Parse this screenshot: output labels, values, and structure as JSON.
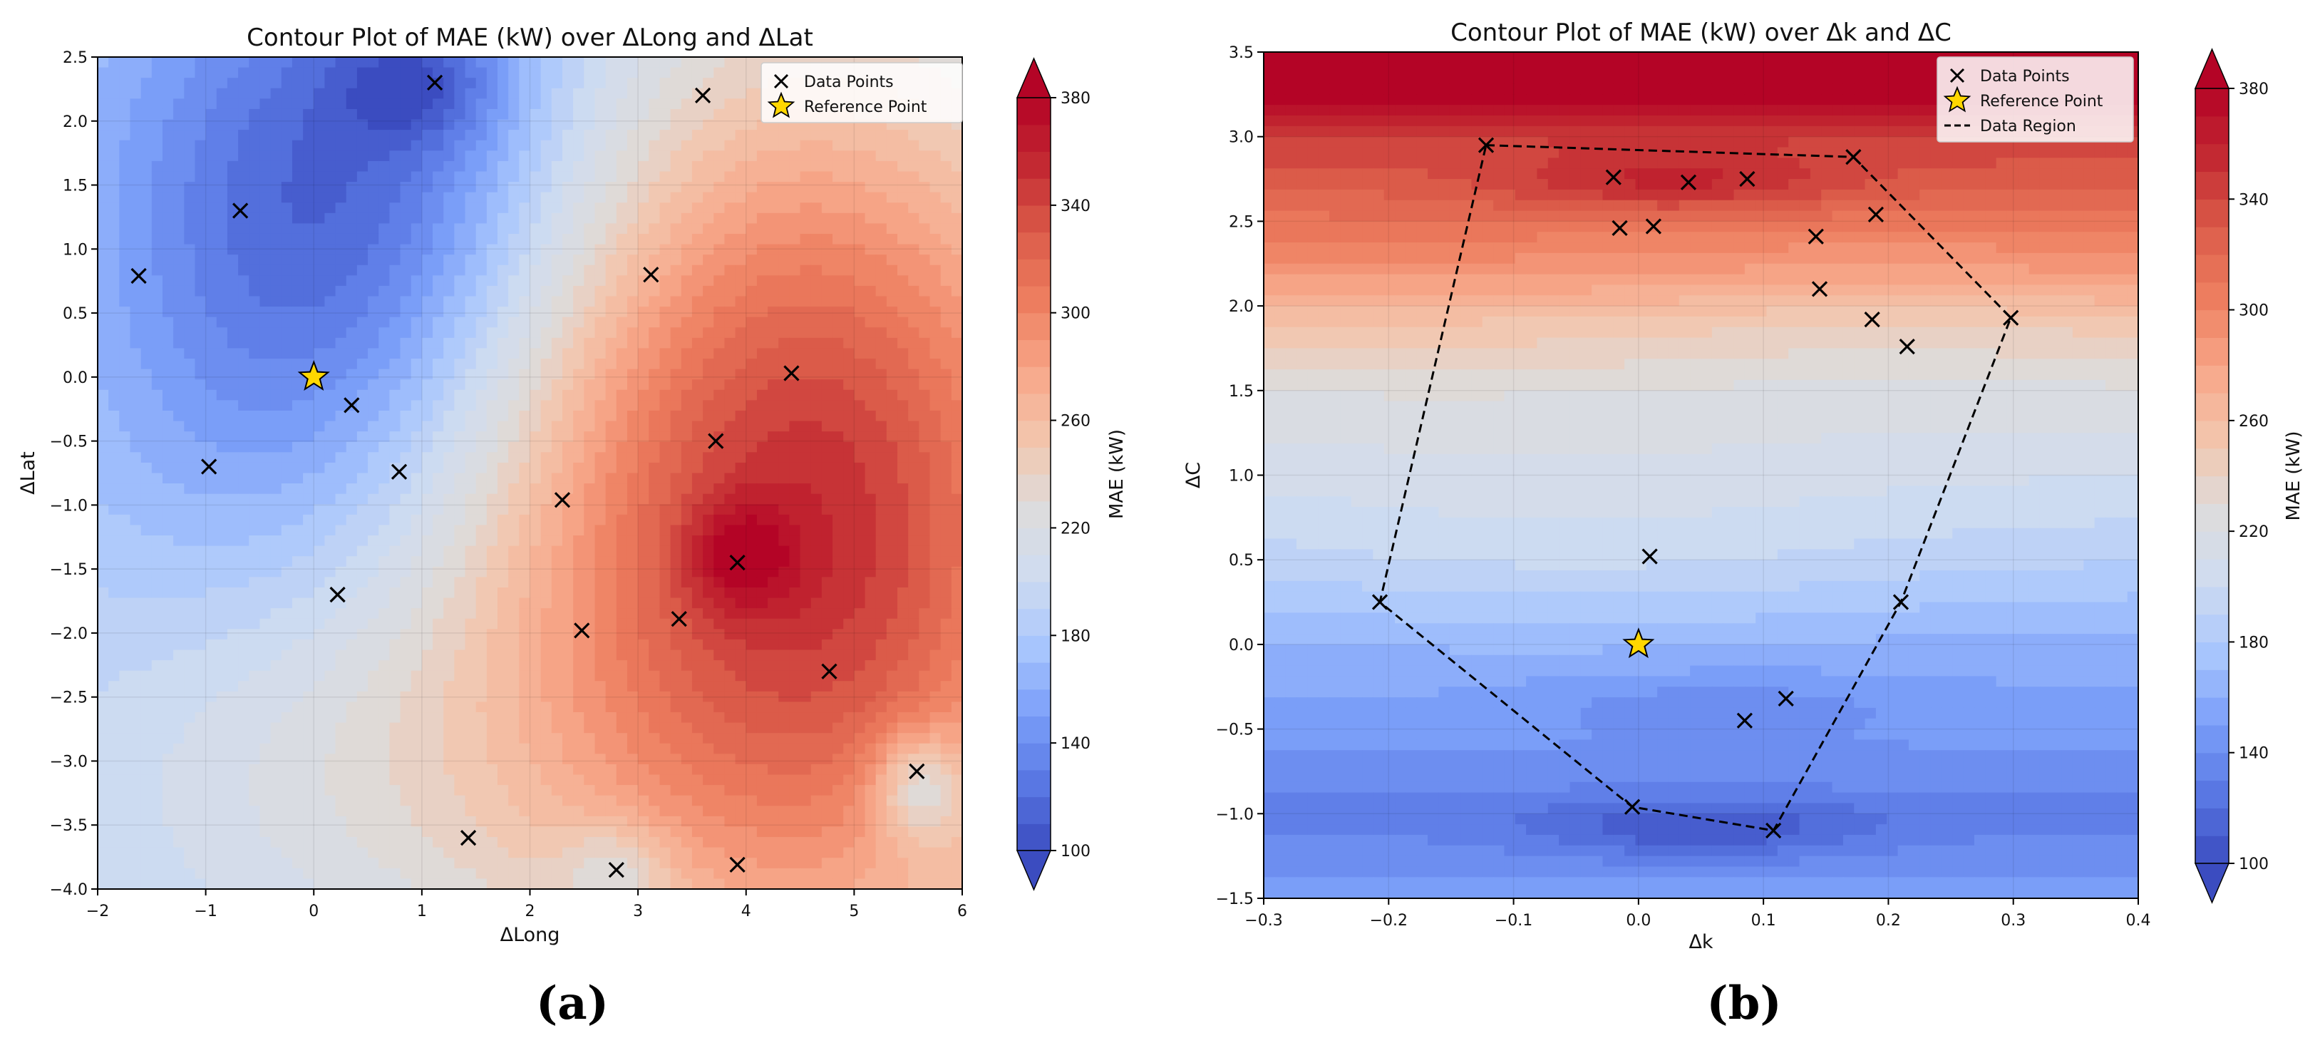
{
  "figure": {
    "captions": [
      "(a)",
      "(b)"
    ]
  },
  "colors": {
    "cmap": [
      "#3b4cc0",
      "#5a78e4",
      "#7b9ff9",
      "#aac7fd",
      "#cfdcf0",
      "#dddcdc",
      "#f3c6ad",
      "#f7a789",
      "#ee7f60",
      "#dc5d4a",
      "#c32a32",
      "#b40426"
    ],
    "star_fill": "#ffd700",
    "marker": "#000000",
    "legend_bg": "#ffffff"
  },
  "chart_data": [
    {
      "type": "contour",
      "title": "Contour Plot of MAE (kW) over ΔLong and ΔLat",
      "xlabel": "ΔLong",
      "ylabel": "ΔLat",
      "xlim": [
        -2,
        6
      ],
      "ylim": [
        -4,
        2.5
      ],
      "xticks": [
        "−2",
        "−1",
        "0",
        "1",
        "2",
        "3",
        "4",
        "5",
        "6"
      ],
      "xtick_values": [
        -2,
        -1,
        0,
        1,
        2,
        3,
        4,
        5,
        6
      ],
      "yticks": [
        "2.5",
        "2.0",
        "1.5",
        "1.0",
        "0.5",
        "0.0",
        "−0.5",
        "−1.0",
        "−1.5",
        "−2.0",
        "−2.5",
        "−3.0",
        "−3.5",
        "−4.0"
      ],
      "ytick_values": [
        2.5,
        2.0,
        1.5,
        1.0,
        0.5,
        0.0,
        -0.5,
        -1.0,
        -1.5,
        -2.0,
        -2.5,
        -3.0,
        -3.5,
        -4.0
      ],
      "colorbar": {
        "label": "MAE (kW)",
        "min": 100,
        "max": 380,
        "ticks": [
          "380",
          "340",
          "300",
          "260",
          "220",
          "180",
          "140",
          "100"
        ],
        "tick_values": [
          380,
          340,
          300,
          260,
          220,
          180,
          140,
          100
        ]
      },
      "legend": {
        "items": [
          "Data Points",
          "Reference Point"
        ],
        "position": "top-right"
      },
      "data_points": [
        {
          "x": 1.12,
          "y": 2.3
        },
        {
          "x": 3.6,
          "y": 2.2
        },
        {
          "x": -0.68,
          "y": 1.3
        },
        {
          "x": -1.62,
          "y": 0.79
        },
        {
          "x": 3.12,
          "y": 0.8
        },
        {
          "x": 4.42,
          "y": 0.03
        },
        {
          "x": 0.35,
          "y": -0.22
        },
        {
          "x": 3.72,
          "y": -0.5
        },
        {
          "x": -0.97,
          "y": -0.7
        },
        {
          "x": 0.79,
          "y": -0.74
        },
        {
          "x": 2.3,
          "y": -0.96
        },
        {
          "x": 3.92,
          "y": -1.45
        },
        {
          "x": 0.22,
          "y": -1.7
        },
        {
          "x": 3.38,
          "y": -1.89
        },
        {
          "x": 2.48,
          "y": -1.98
        },
        {
          "x": 4.77,
          "y": -2.3
        },
        {
          "x": 5.58,
          "y": -3.08
        },
        {
          "x": 1.43,
          "y": -3.6
        },
        {
          "x": 3.92,
          "y": -3.81
        },
        {
          "x": 2.8,
          "y": -3.85
        }
      ],
      "reference_point": {
        "x": 0,
        "y": 0
      },
      "field": {
        "base": 185,
        "terms": [
          {
            "cx": 4.5,
            "cy": -1.2,
            "sx": 2.0,
            "sy": 2.5,
            "a": 170
          },
          {
            "cx": 3.95,
            "cy": -1.4,
            "sx": 0.35,
            "sy": 0.3,
            "a": 40
          },
          {
            "cx": 5.6,
            "cy": -3.2,
            "sx": 0.3,
            "sy": 0.3,
            "a": -60
          },
          {
            "cx": 0.7,
            "cy": 1.6,
            "sx": 1.5,
            "sy": 1.4,
            "a": -55
          },
          {
            "cx": 1.0,
            "cy": 2.3,
            "sx": 0.55,
            "sy": 0.35,
            "a": -40
          },
          {
            "cx": -0.4,
            "cy": 0.5,
            "sx": 1.3,
            "sy": 2.0,
            "a": -35
          },
          {
            "cx": 0.2,
            "cy": -3.0,
            "sx": 1.8,
            "sy": 1.2,
            "a": 35
          },
          {
            "cx": 2.8,
            "cy": -3.85,
            "sx": 0.35,
            "sy": 0.25,
            "a": -35
          }
        ]
      }
    },
    {
      "type": "contour",
      "title": "Contour Plot of MAE (kW) over Δk and ΔC",
      "xlabel": "Δk",
      "ylabel": "ΔC",
      "xlim": [
        -0.3,
        0.4
      ],
      "ylim": [
        -1.5,
        3.5
      ],
      "xticks": [
        "−0.3",
        "−0.2",
        "−0.1",
        "0.0",
        "0.1",
        "0.2",
        "0.3",
        "0.4"
      ],
      "xtick_values": [
        -0.3,
        -0.2,
        -0.1,
        0.0,
        0.1,
        0.2,
        0.3,
        0.4
      ],
      "yticks": [
        "3.5",
        "3.0",
        "2.5",
        "2.0",
        "1.5",
        "1.0",
        "0.5",
        "0.0",
        "−0.5",
        "−1.0",
        "−1.5"
      ],
      "ytick_values": [
        3.5,
        3.0,
        2.5,
        2.0,
        1.5,
        1.0,
        0.5,
        0.0,
        -0.5,
        -1.0,
        -1.5
      ],
      "colorbar": {
        "label": "MAE (kW)",
        "min": 100,
        "max": 380,
        "ticks": [
          "380",
          "340",
          "300",
          "260",
          "220",
          "180",
          "140",
          "100"
        ],
        "tick_values": [
          380,
          340,
          300,
          260,
          220,
          180,
          140,
          100
        ]
      },
      "legend": {
        "items": [
          "Data Points",
          "Reference Point",
          "Data Region"
        ],
        "position": "top-right"
      },
      "data_points": [
        {
          "x": -0.122,
          "y": 2.95
        },
        {
          "x": 0.172,
          "y": 2.88
        },
        {
          "x": -0.02,
          "y": 2.76
        },
        {
          "x": 0.04,
          "y": 2.73
        },
        {
          "x": 0.087,
          "y": 2.75
        },
        {
          "x": 0.19,
          "y": 2.54
        },
        {
          "x": -0.015,
          "y": 2.46
        },
        {
          "x": 0.012,
          "y": 2.47
        },
        {
          "x": 0.142,
          "y": 2.41
        },
        {
          "x": 0.145,
          "y": 2.1
        },
        {
          "x": 0.298,
          "y": 1.93
        },
        {
          "x": 0.187,
          "y": 1.92
        },
        {
          "x": 0.215,
          "y": 1.76
        },
        {
          "x": 0.009,
          "y": 0.52
        },
        {
          "x": -0.207,
          "y": 0.25
        },
        {
          "x": 0.21,
          "y": 0.25
        },
        {
          "x": 0.118,
          "y": -0.32
        },
        {
          "x": 0.085,
          "y": -0.45
        },
        {
          "x": -0.005,
          "y": -0.96
        },
        {
          "x": 0.108,
          "y": -1.1
        }
      ],
      "reference_point": {
        "x": 0,
        "y": 0
      },
      "data_region": [
        {
          "x": -0.122,
          "y": 2.95
        },
        {
          "x": 0.172,
          "y": 2.88
        },
        {
          "x": 0.298,
          "y": 1.93
        },
        {
          "x": 0.21,
          "y": 0.25
        },
        {
          "x": 0.108,
          "y": -1.1
        },
        {
          "x": -0.005,
          "y": -0.96
        },
        {
          "x": -0.207,
          "y": 0.25
        }
      ],
      "field": {
        "profile": [
          [
            -1.5,
            150
          ],
          [
            -1.0,
            130
          ],
          [
            -0.5,
            150
          ],
          [
            0.0,
            160
          ],
          [
            0.5,
            185
          ],
          [
            1.0,
            205
          ],
          [
            1.5,
            225
          ],
          [
            1.9,
            255
          ],
          [
            2.2,
            290
          ],
          [
            2.6,
            320
          ],
          [
            3.0,
            345
          ],
          [
            3.2,
            375
          ],
          [
            3.5,
            380
          ]
        ],
        "terms": [
          {
            "cx": 0.05,
            "cy": -1.1,
            "sx": 0.09,
            "sy": 0.12,
            "a": -28
          },
          {
            "cx": 0.06,
            "cy": -0.35,
            "sx": 0.12,
            "sy": 0.15,
            "a": -15
          },
          {
            "cx": -0.05,
            "cy": 0.5,
            "sx": 0.2,
            "sy": 0.5,
            "a": 12
          },
          {
            "cx": 0.03,
            "cy": 2.72,
            "sx": 0.1,
            "sy": 0.12,
            "a": 30
          },
          {
            "cx": 0.2,
            "cy": 2.0,
            "sx": 0.15,
            "sy": 0.4,
            "a": -10
          }
        ]
      }
    }
  ]
}
